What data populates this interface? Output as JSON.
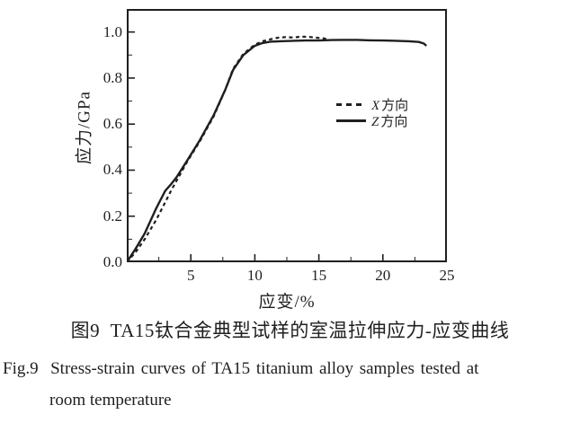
{
  "figure": {
    "caption_cn": "图9  TA15钛合金典型试样的室温拉伸应力-应变曲线",
    "caption_en_line1": "Fig.9  Stress-strain curves of TA15 titanium alloy samples tested at",
    "caption_en_line2": "room temperature"
  },
  "legend": {
    "items": [
      {
        "symbol": "X",
        "text": "方向",
        "line": "dashed"
      },
      {
        "symbol": "Z",
        "text": "方向",
        "line": "solid"
      }
    ]
  },
  "chart_data": {
    "type": "line",
    "title": "",
    "xlabel": "应变/%",
    "ylabel": "应力/GPa",
    "xlim": [
      0,
      25
    ],
    "ylim": [
      0,
      1.1
    ],
    "xticks_major": [
      5,
      10,
      15,
      20,
      25
    ],
    "xticks_minor": [
      2.5,
      7.5,
      12.5,
      17.5,
      22.5
    ],
    "yticks_major": [
      0,
      0.2,
      0.4,
      0.6,
      0.8,
      1.0
    ],
    "ytick_labels": [
      "0.0",
      "0.2",
      "0.4",
      "0.6",
      "0.8",
      "1.0"
    ],
    "yticks_minor": [
      0.1,
      0.3,
      0.5,
      0.7,
      0.9
    ],
    "grid": false,
    "legend_position": "inside-right-center",
    "ink_color": "#1f1f1f",
    "series": [
      {
        "id": "z-direction",
        "name": "Z方向",
        "line": "solid",
        "points": [
          [
            0,
            0
          ],
          [
            0.7,
            0.06
          ],
          [
            1.4,
            0.125
          ],
          [
            2.3,
            0.235
          ],
          [
            3.0,
            0.31
          ],
          [
            3.4,
            0.335
          ],
          [
            3.9,
            0.37
          ],
          [
            4.7,
            0.44
          ],
          [
            5.7,
            0.53
          ],
          [
            6.8,
            0.64
          ],
          [
            7.7,
            0.75
          ],
          [
            8.3,
            0.835
          ],
          [
            9.1,
            0.9
          ],
          [
            10,
            0.94
          ],
          [
            10.6,
            0.952
          ],
          [
            11.2,
            0.958
          ],
          [
            12,
            0.96
          ],
          [
            13,
            0.962
          ],
          [
            14,
            0.963
          ],
          [
            15,
            0.963
          ],
          [
            16,
            0.965
          ],
          [
            17,
            0.966
          ],
          [
            18,
            0.966
          ],
          [
            19,
            0.964
          ],
          [
            20,
            0.963
          ],
          [
            21,
            0.962
          ],
          [
            22,
            0.96
          ],
          [
            22.8,
            0.957
          ],
          [
            23.2,
            0.95
          ],
          [
            23.4,
            0.94
          ]
        ]
      },
      {
        "id": "x-direction",
        "name": "X方向",
        "line": "dashed",
        "points": [
          [
            0,
            0
          ],
          [
            0.7,
            0.045
          ],
          [
            1.4,
            0.1
          ],
          [
            2.3,
            0.185
          ],
          [
            3.0,
            0.26
          ],
          [
            3.5,
            0.315
          ],
          [
            3.9,
            0.355
          ],
          [
            4.7,
            0.435
          ],
          [
            5.7,
            0.525
          ],
          [
            6.8,
            0.635
          ],
          [
            7.7,
            0.75
          ],
          [
            8.3,
            0.84
          ],
          [
            9.1,
            0.905
          ],
          [
            10,
            0.945
          ],
          [
            10.6,
            0.96
          ],
          [
            11.2,
            0.968
          ],
          [
            11.8,
            0.975
          ],
          [
            12.4,
            0.978
          ],
          [
            13,
            0.976
          ],
          [
            13.6,
            0.98
          ],
          [
            14.2,
            0.979
          ],
          [
            14.8,
            0.975
          ],
          [
            15.4,
            0.972
          ],
          [
            15.8,
            0.967
          ]
        ]
      }
    ]
  }
}
